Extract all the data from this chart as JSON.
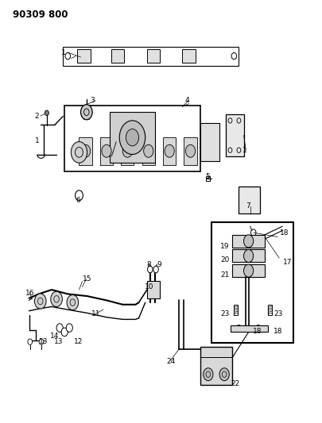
{
  "title": "90309 800",
  "bg_color": "#ffffff",
  "fg_color": "#000000",
  "fig_width": 4.06,
  "fig_height": 5.33,
  "dpi": 100
}
